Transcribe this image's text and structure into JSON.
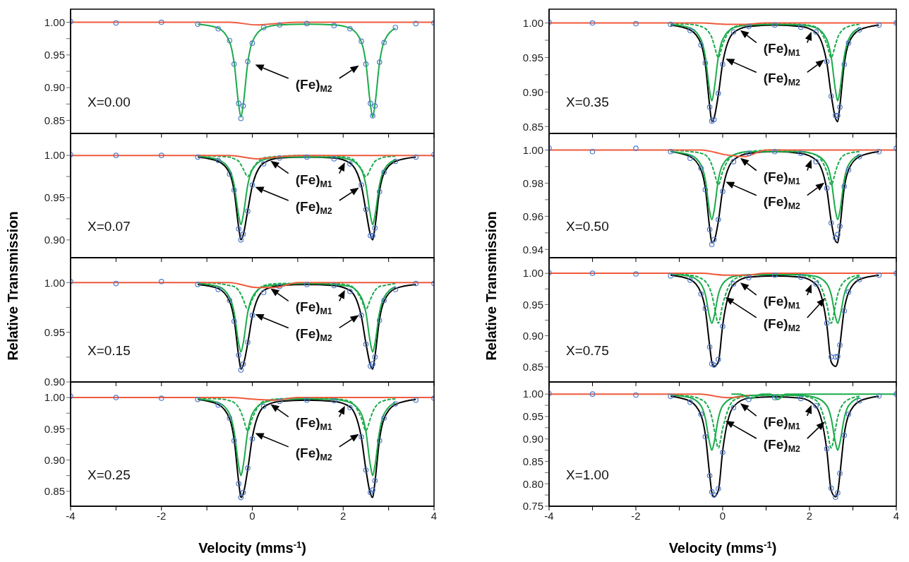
{
  "chart_data": [
    {
      "type": "line",
      "x": [
        -4,
        -3,
        -2,
        -1.2,
        -0.75,
        -0.5,
        -0.4,
        -0.3,
        -0.25,
        -0.2,
        -0.1,
        0,
        0.25,
        0.6,
        1.2,
        1.8,
        2.15,
        2.4,
        2.5,
        2.6,
        2.65,
        2.7,
        2.8,
        2.9,
        3.15,
        3.6,
        4
      ],
      "xlim": [
        -4,
        4
      ],
      "xticks": [
        -4,
        {
          "value": -3,
          "label": null
        },
        -2,
        {
          "value": -1,
          "label": null
        },
        0,
        {
          "value": 1,
          "label": null
        },
        2,
        {
          "value": 3,
          "label": null
        },
        4
      ],
      "ylim": [
        0.83,
        1.02
      ],
      "yticks": [
        {
          "value": 0.85,
          "label": "0.85"
        },
        {
          "value": 0.875,
          "label": null
        },
        {
          "value": 0.9,
          "label": "0.90"
        },
        {
          "value": 0.925,
          "label": null
        },
        {
          "value": 0.95,
          "label": "0.95"
        },
        {
          "value": 0.975,
          "label": null
        },
        {
          "value": 1,
          "label": "1.00"
        }
      ],
      "tick_labels": "y",
      "annotations": [
        "X=0.00",
        "(Fe)$_{M2}$"
      ],
      "series": [
        {
          "type": "scatter",
          "marker": "circle",
          "color": "#4f79c9",
          "values": [
            1.001,
            0.999,
            1,
            0.997,
            0.99,
            0.972,
            0.936,
            0.876,
            0.853,
            0.872,
            0.94,
            0.968,
            0.992,
            0.996,
            0.998,
            0.995,
            0.99,
            0.971,
            0.936,
            0.876,
            0.857,
            0.872,
            0.939,
            0.969,
            0.992,
            0.998,
            0.999
          ]
        },
        {
          "color": "#1aab4a",
          "line_style": "solid",
          "values": [
            null,
            null,
            null,
            0.997,
            0.991,
            0.97,
            0.938,
            0.874,
            0.855,
            0.874,
            0.938,
            0.97,
            0.991,
            0.996,
            0.997,
            0.996,
            0.991,
            0.97,
            0.938,
            0.874,
            0.855,
            0.874,
            0.938,
            0.97,
            0.991,
            null,
            null
          ]
        },
        {
          "color": "#f05a3c",
          "x": [
            -4,
            -0.5,
            0.1,
            0.5,
            1,
            4
          ],
          "values": [
            1,
            1,
            0.996,
            0.998,
            1,
            1
          ]
        }
      ]
    },
    {
      "type": "line",
      "x": [
        -4,
        -3,
        -2,
        -1.2,
        -0.75,
        -0.5,
        -0.4,
        -0.3,
        -0.25,
        -0.2,
        -0.1,
        0,
        0.25,
        0.6,
        1.2,
        1.8,
        2.15,
        2.4,
        2.5,
        2.6,
        2.65,
        2.7,
        2.8,
        2.9,
        3.15,
        3.6,
        4
      ],
      "xlim": [
        -4,
        4
      ],
      "xticks": [
        -4,
        {
          "value": -3,
          "label": null
        },
        -2,
        {
          "value": -1,
          "label": null
        },
        0,
        {
          "value": 1,
          "label": null
        },
        2,
        {
          "value": 3,
          "label": null
        },
        4
      ],
      "ylim": [
        0.879,
        1.026
      ],
      "yticks": [
        {
          "value": 0.9,
          "label": "0.90"
        },
        {
          "value": 0.925,
          "label": null
        },
        {
          "value": 0.95,
          "label": "0.95"
        },
        {
          "value": 0.975,
          "label": null
        },
        {
          "value": 1,
          "label": "1.00"
        }
      ],
      "tick_labels": "y",
      "annotations": [
        "X=0.07",
        "(Fe)$_{M1}$",
        "(Fe)$_{M2}$"
      ],
      "series": [
        {
          "type": "scatter",
          "marker": "circle",
          "color": "#4f79c9",
          "values": [
            1.001,
            1,
            1,
            0.998,
            0.994,
            0.978,
            0.959,
            0.913,
            0.9,
            0.907,
            0.934,
            0.965,
            0.99,
            0.997,
            0.998,
            0.996,
            0.99,
            0.965,
            0.936,
            0.905,
            0.905,
            0.914,
            0.957,
            0.98,
            0.993,
            0.998,
            1.001
          ]
        },
        {
          "color": "#000000",
          "values": [
            null,
            null,
            null,
            0.998,
            0.993,
            0.979,
            0.958,
            0.915,
            0.9,
            0.906,
            0.935,
            0.964,
            0.991,
            0.997,
            0.998,
            0.997,
            0.991,
            0.964,
            0.935,
            0.906,
            0.9,
            0.915,
            0.958,
            0.979,
            0.993,
            0.998,
            null
          ]
        },
        {
          "color": "#1aab4a",
          "line_style": "dashed",
          "values": [
            null,
            null,
            null,
            1,
            0.999,
            0.998,
            0.996,
            0.993,
            0.989,
            0.984,
            0.975,
            0.984,
            0.997,
            0.999,
            1,
            0.999,
            0.997,
            0.984,
            0.975,
            0.984,
            0.989,
            0.993,
            0.996,
            0.998,
            0.999,
            null,
            null
          ]
        },
        {
          "color": "#1aab4a",
          "line_style": "solid",
          "values": [
            null,
            null,
            null,
            0.999,
            0.995,
            0.983,
            0.965,
            0.929,
            0.918,
            0.929,
            0.965,
            0.983,
            0.995,
            0.998,
            0.998,
            0.998,
            0.995,
            0.983,
            0.965,
            0.929,
            0.918,
            0.929,
            0.965,
            0.983,
            0.995,
            null,
            null
          ]
        },
        {
          "color": "#f05a3c",
          "x": [
            -4,
            -0.5,
            0.1,
            0.5,
            1,
            4
          ],
          "values": [
            1,
            1,
            0.996,
            0.998,
            1,
            1
          ]
        }
      ]
    },
    {
      "type": "line",
      "x": [
        -4,
        -3,
        -2,
        -1.2,
        -0.75,
        -0.5,
        -0.4,
        -0.3,
        -0.25,
        -0.2,
        -0.1,
        0,
        0.25,
        0.6,
        1.2,
        1.8,
        2.15,
        2.4,
        2.5,
        2.6,
        2.65,
        2.7,
        2.8,
        2.9,
        3.15,
        3.6,
        4
      ],
      "xlim": [
        -4,
        4
      ],
      "xticks": [
        -4,
        {
          "value": -3,
          "label": null
        },
        -2,
        {
          "value": -1,
          "label": null
        },
        0,
        {
          "value": 1,
          "label": null
        },
        2,
        {
          "value": 3,
          "label": null
        },
        4
      ],
      "ylim": [
        0.9,
        1.025
      ],
      "yticks": [
        {
          "value": 0.9,
          "label": "0.90"
        },
        {
          "value": 0.925,
          "label": null
        },
        {
          "value": 0.95,
          "label": "0.95"
        },
        {
          "value": 0.975,
          "label": null
        },
        {
          "value": 1,
          "label": "1.00"
        }
      ],
      "tick_labels": "y",
      "ylabel": "Relative Transmission",
      "annotations": [
        "X=0.15",
        "(Fe)$_{M1}$",
        "(Fe)$_{M2}$"
      ],
      "series": [
        {
          "type": "scatter",
          "marker": "circle",
          "color": "#4f79c9",
          "values": [
            1.001,
            0.999,
            1.001,
            0.998,
            0.993,
            0.982,
            0.961,
            0.927,
            0.912,
            0.918,
            0.94,
            0.967,
            0.99,
            0.996,
            0.998,
            0.997,
            0.991,
            0.967,
            0.938,
            0.916,
            0.918,
            0.925,
            0.962,
            0.982,
            0.993,
            0.999,
            0.999
          ]
        },
        {
          "color": "#000000",
          "values": [
            null,
            null,
            null,
            0.998,
            0.994,
            0.981,
            0.963,
            0.926,
            0.913,
            0.917,
            0.939,
            0.966,
            0.992,
            0.997,
            0.998,
            0.997,
            0.992,
            0.966,
            0.939,
            0.917,
            0.913,
            0.926,
            0.963,
            0.981,
            0.994,
            0.998,
            null
          ]
        },
        {
          "color": "#1aab4a",
          "line_style": "dashed",
          "values": [
            null,
            null,
            null,
            1,
            0.999,
            0.997,
            0.996,
            0.992,
            0.988,
            0.983,
            0.973,
            0.983,
            0.997,
            0.999,
            0.999,
            0.999,
            0.997,
            0.983,
            0.973,
            0.983,
            0.988,
            0.992,
            0.996,
            0.997,
            0.999,
            null,
            null
          ]
        },
        {
          "color": "#1aab4a",
          "line_style": "solid",
          "values": [
            null,
            null,
            null,
            0.999,
            0.996,
            0.985,
            0.97,
            0.939,
            0.93,
            0.939,
            0.97,
            0.985,
            0.996,
            0.998,
            0.999,
            0.998,
            0.996,
            0.985,
            0.97,
            0.939,
            0.93,
            0.939,
            0.97,
            0.985,
            0.996,
            null,
            null
          ]
        },
        {
          "color": "#f05a3c",
          "x": [
            -4,
            -0.5,
            0.1,
            0.5,
            1,
            4
          ],
          "values": [
            1,
            1,
            0.995,
            0.995,
            1,
            1
          ]
        }
      ]
    },
    {
      "type": "line",
      "x": [
        -4,
        -3,
        -2,
        -1.2,
        -0.75,
        -0.5,
        -0.4,
        -0.3,
        -0.25,
        -0.2,
        -0.1,
        0,
        0.25,
        0.6,
        1.2,
        1.8,
        2.15,
        2.4,
        2.5,
        2.6,
        2.65,
        2.7,
        2.8,
        2.9,
        3.15,
        3.6,
        4
      ],
      "xlim": [
        -4,
        4
      ],
      "xticks": [
        -4,
        {
          "value": -3,
          "label": null
        },
        -2,
        {
          "value": -1,
          "label": null
        },
        0,
        {
          "value": 1,
          "label": null
        },
        2,
        {
          "value": 3,
          "label": null
        },
        4
      ],
      "ylim": [
        0.826,
        1.025
      ],
      "yticks": [
        {
          "value": 0.85,
          "label": "0.85"
        },
        {
          "value": 0.875,
          "label": null
        },
        {
          "value": 0.9,
          "label": "0.90"
        },
        {
          "value": 0.925,
          "label": null
        },
        {
          "value": 0.95,
          "label": "0.95"
        },
        {
          "value": 0.975,
          "label": null
        },
        {
          "value": 1,
          "label": "1.00"
        }
      ],
      "xlabel": "Velocity (mms$^{-1}$)",
      "annotations": [
        "X=0.25",
        "(Fe)$_{M1}$",
        "(Fe)$_{M2}$"
      ],
      "series": [
        {
          "type": "scatter",
          "marker": "circle",
          "color": "#4f79c9",
          "values": [
            1.002,
            1,
            0.999,
            0.997,
            0.988,
            0.967,
            0.931,
            0.862,
            0.84,
            0.848,
            0.887,
            0.934,
            0.986,
            0.994,
            0.996,
            0.995,
            0.984,
            0.937,
            0.884,
            0.848,
            0.852,
            0.867,
            0.931,
            0.967,
            0.99,
            0.996,
            0.999
          ]
        },
        {
          "color": "#000000",
          "values": [
            null,
            null,
            null,
            0.997,
            0.989,
            0.966,
            0.933,
            0.865,
            0.84,
            0.846,
            0.885,
            0.936,
            0.985,
            0.994,
            0.996,
            0.994,
            0.985,
            0.936,
            0.885,
            0.846,
            0.84,
            0.865,
            0.933,
            0.966,
            0.989,
            0.997,
            null
          ]
        },
        {
          "color": "#1aab4a",
          "line_style": "dashed",
          "values": [
            null,
            null,
            null,
            0.999,
            0.998,
            0.995,
            0.992,
            0.984,
            0.977,
            0.967,
            0.947,
            0.967,
            0.994,
            0.998,
            0.999,
            0.998,
            0.994,
            0.967,
            0.947,
            0.967,
            0.977,
            0.984,
            0.992,
            0.995,
            0.998,
            null,
            null
          ]
        },
        {
          "color": "#1aab4a",
          "line_style": "solid",
          "values": [
            null,
            null,
            null,
            0.998,
            0.992,
            0.974,
            0.946,
            0.891,
            0.875,
            0.891,
            0.946,
            0.974,
            0.992,
            0.997,
            0.998,
            0.997,
            0.992,
            0.974,
            0.946,
            0.891,
            0.875,
            0.891,
            0.946,
            0.974,
            0.992,
            null,
            null
          ]
        },
        {
          "color": "#f05a3c",
          "x": [
            -4,
            -0.5,
            0.1,
            0.5,
            1,
            4
          ],
          "values": [
            1,
            1,
            0.997,
            0.996,
            1,
            1
          ]
        }
      ]
    },
    {
      "type": "line",
      "x": [
        -4,
        -3,
        -2,
        -1.2,
        -0.75,
        -0.5,
        -0.4,
        -0.3,
        -0.25,
        -0.2,
        -0.1,
        0,
        0.25,
        0.6,
        1.2,
        1.8,
        2.15,
        2.4,
        2.5,
        2.6,
        2.65,
        2.7,
        2.8,
        2.9,
        3.15,
        3.6,
        4
      ],
      "xlim": [
        -4,
        4
      ],
      "xticks": [
        -4,
        {
          "value": -3,
          "label": null
        },
        -2,
        {
          "value": -1,
          "label": null
        },
        0,
        {
          "value": 1,
          "label": null
        },
        2,
        {
          "value": 3,
          "label": null
        },
        4
      ],
      "ylim": [
        0.84,
        1.02
      ],
      "yticks": [
        {
          "value": 0.85,
          "label": "0.85"
        },
        {
          "value": 0.875,
          "label": null
        },
        {
          "value": 0.9,
          "label": "0.90"
        },
        {
          "value": 0.925,
          "label": null
        },
        {
          "value": 0.95,
          "label": "0.95"
        },
        {
          "value": 0.975,
          "label": null
        },
        {
          "value": 1,
          "label": "1.00"
        }
      ],
      "tick_labels": "y",
      "annotations": [
        "X=0.35",
        "(Fe)$_{M1}$",
        "(Fe)$_{M2}$"
      ],
      "series": [
        {
          "type": "scatter",
          "marker": "circle",
          "color": "#4f79c9",
          "values": [
            1.001,
            1,
            0.999,
            0.998,
            0.989,
            0.968,
            0.942,
            0.878,
            0.858,
            0.86,
            0.898,
            0.94,
            0.987,
            0.995,
            0.997,
            0.994,
            0.987,
            0.944,
            0.894,
            0.866,
            0.866,
            0.878,
            0.94,
            0.971,
            0.99,
            0.997,
            1
          ]
        },
        {
          "color": "#000000",
          "values": [
            null,
            null,
            null,
            0.997,
            0.99,
            0.97,
            0.94,
            0.88,
            0.857,
            0.862,
            0.896,
            0.942,
            0.986,
            0.995,
            0.997,
            0.995,
            0.986,
            0.942,
            0.896,
            0.862,
            0.857,
            0.88,
            0.94,
            0.97,
            0.99,
            0.997,
            null
          ]
        },
        {
          "color": "#1aab4a",
          "line_style": "dashed",
          "values": [
            null,
            null,
            null,
            0.999,
            0.998,
            0.995,
            0.992,
            0.985,
            0.979,
            0.969,
            0.95,
            0.969,
            0.994,
            0.998,
            0.999,
            0.998,
            0.994,
            0.969,
            0.95,
            0.969,
            0.979,
            0.985,
            0.992,
            0.995,
            0.998,
            null,
            null
          ]
        },
        {
          "color": "#1aab4a",
          "line_style": "solid",
          "values": [
            null,
            null,
            null,
            0.998,
            0.993,
            0.976,
            0.951,
            0.902,
            0.887,
            0.902,
            0.951,
            0.976,
            0.993,
            0.997,
            0.998,
            0.997,
            0.993,
            0.976,
            0.951,
            0.902,
            0.887,
            0.902,
            0.951,
            0.976,
            0.993,
            null,
            null
          ]
        },
        {
          "color": "#f05a3c",
          "x": [
            -4,
            -0.5,
            0.1,
            0.5,
            1,
            4
          ],
          "values": [
            1,
            1,
            0.998,
            0.998,
            1,
            1
          ]
        }
      ]
    },
    {
      "type": "line",
      "x": [
        -4,
        -3,
        -2,
        -1.2,
        -0.75,
        -0.5,
        -0.4,
        -0.3,
        -0.25,
        -0.2,
        -0.1,
        0,
        0.25,
        0.6,
        1.2,
        1.8,
        2.15,
        2.4,
        2.5,
        2.6,
        2.65,
        2.7,
        2.8,
        2.9,
        3.15,
        3.6,
        4
      ],
      "xlim": [
        -4,
        4
      ],
      "xticks": [
        -4,
        {
          "value": -3,
          "label": null
        },
        -2,
        {
          "value": -1,
          "label": null
        },
        0,
        {
          "value": 1,
          "label": null
        },
        2,
        {
          "value": 3,
          "label": null
        },
        4
      ],
      "ylim": [
        0.935,
        1.01
      ],
      "yticks": [
        {
          "value": 0.94,
          "label": "0.94"
        },
        {
          "value": 0.95,
          "label": null
        },
        {
          "value": 0.96,
          "label": "0.96"
        },
        {
          "value": 0.97,
          "label": null
        },
        {
          "value": 0.98,
          "label": "0.98"
        },
        {
          "value": 0.99,
          "label": null
        },
        {
          "value": 1,
          "label": "1.00"
        }
      ],
      "tick_labels": "y",
      "annotations": [
        "X=0.50",
        "(Fe)$_{M1}$",
        "(Fe)$_{M2}$"
      ],
      "series": [
        {
          "type": "scatter",
          "marker": "circle",
          "color": "#4f79c9",
          "values": [
            1.001,
            0.999,
            1.001,
            0.999,
            0.995,
            0.989,
            0.976,
            0.952,
            0.943,
            0.946,
            0.958,
            0.975,
            0.993,
            0.998,
            0.999,
            0.998,
            0.993,
            0.977,
            0.956,
            0.947,
            0.949,
            0.954,
            0.978,
            0.988,
            0.996,
            0.999,
            1.001
          ]
        },
        {
          "color": "#000000",
          "values": [
            null,
            null,
            null,
            0.999,
            0.996,
            0.988,
            0.977,
            0.953,
            0.944,
            0.945,
            0.957,
            0.976,
            0.994,
            0.998,
            0.999,
            0.998,
            0.994,
            0.976,
            0.957,
            0.945,
            0.944,
            0.953,
            0.977,
            0.988,
            0.996,
            0.999,
            null
          ]
        },
        {
          "color": "#1aab4a",
          "line_style": "dashed",
          "values": [
            null,
            null,
            null,
            1,
            0.999,
            0.998,
            0.997,
            0.994,
            0.991,
            0.987,
            0.979,
            0.987,
            0.997,
            0.999,
            1,
            0.999,
            0.997,
            0.987,
            0.979,
            0.987,
            0.991,
            0.994,
            0.997,
            0.998,
            0.999,
            null,
            null
          ]
        },
        {
          "color": "#1aab4a",
          "line_style": "solid",
          "values": [
            null,
            null,
            null,
            0.999,
            0.997,
            0.991,
            0.982,
            0.963,
            0.958,
            0.963,
            0.982,
            0.991,
            0.997,
            0.999,
            0.999,
            0.999,
            0.997,
            0.991,
            0.982,
            0.963,
            0.958,
            0.963,
            0.982,
            0.991,
            0.997,
            null,
            null
          ]
        },
        {
          "color": "#f05a3c",
          "x": [
            -4,
            -0.5,
            0.1,
            0.5,
            1,
            4
          ],
          "values": [
            1,
            1,
            0.997,
            0.996,
            1,
            1
          ]
        }
      ]
    },
    {
      "type": "line",
      "x": [
        -4,
        -3,
        -2,
        -1.2,
        -0.75,
        -0.5,
        -0.4,
        -0.3,
        -0.25,
        -0.2,
        -0.1,
        0,
        0.25,
        0.6,
        1.2,
        1.8,
        2.15,
        2.4,
        2.5,
        2.6,
        2.65,
        2.7,
        2.8,
        2.9,
        3.15,
        3.6,
        4
      ],
      "xlim": [
        -4,
        4
      ],
      "xticks": [
        -4,
        {
          "value": -3,
          "label": null
        },
        -2,
        {
          "value": -1,
          "label": null
        },
        0,
        {
          "value": 1,
          "label": null
        },
        2,
        {
          "value": 3,
          "label": null
        },
        4
      ],
      "ylim": [
        0.826,
        1.025
      ],
      "yticks": [
        {
          "value": 0.85,
          "label": "0.85"
        },
        {
          "value": 0.875,
          "label": null
        },
        {
          "value": 0.9,
          "label": "0.90"
        },
        {
          "value": 0.925,
          "label": null
        },
        {
          "value": 0.95,
          "label": "0.95"
        },
        {
          "value": 0.975,
          "label": null
        },
        {
          "value": 1,
          "label": "1.00"
        }
      ],
      "tick_labels": "y",
      "ylabel": "Relative Transmission",
      "annotations": [
        "X=0.75",
        "(Fe)$_{M1}$",
        "(Fe)$_{M2}$"
      ],
      "series": [
        {
          "type": "scatter",
          "marker": "circle",
          "color": "#4f79c9",
          "values": [
            1.001,
            1,
            0.999,
            0.996,
            0.989,
            0.967,
            0.944,
            0.882,
            0.855,
            0.853,
            0.862,
            0.915,
            0.983,
            0.993,
            0.997,
            0.994,
            0.983,
            0.92,
            0.866,
            0.866,
            0.867,
            0.885,
            0.94,
            0.97,
            0.99,
            0.997,
            1
          ]
        },
        {
          "color": "#000000",
          "values": [
            null,
            null,
            null,
            0.997,
            0.99,
            0.969,
            0.942,
            0.884,
            0.858,
            0.851,
            0.858,
            0.917,
            0.982,
            0.994,
            0.996,
            0.994,
            0.982,
            0.917,
            0.858,
            0.851,
            0.858,
            0.884,
            0.942,
            0.969,
            0.99,
            0.997,
            null
          ]
        },
        {
          "color": "#1aab4a",
          "line_style": "dashed",
          "values": [
            null,
            null,
            null,
            0.999,
            0.997,
            0.992,
            0.987,
            0.976,
            0.966,
            0.95,
            0.92,
            0.95,
            0.99,
            0.997,
            0.998,
            0.997,
            0.99,
            0.95,
            0.92,
            0.95,
            0.966,
            0.976,
            0.987,
            0.992,
            0.997,
            null,
            null
          ]
        },
        {
          "color": "#1aab4a",
          "line_style": "solid",
          "values": [
            null,
            null,
            null,
            0.999,
            0.995,
            0.983,
            0.966,
            0.93,
            0.92,
            0.93,
            0.966,
            0.983,
            0.995,
            0.998,
            0.998,
            0.998,
            0.995,
            0.983,
            0.966,
            0.93,
            0.92,
            0.93,
            0.966,
            0.983,
            0.995,
            null,
            null
          ]
        },
        {
          "color": "#f05a3c",
          "x": [
            -4,
            -0.5,
            0.1,
            0.5,
            1,
            4
          ],
          "values": [
            1,
            1,
            0.997,
            0.997,
            1,
            1
          ]
        }
      ]
    },
    {
      "type": "line",
      "x": [
        -4,
        -3,
        -2,
        -1.2,
        -0.75,
        -0.5,
        -0.4,
        -0.3,
        -0.25,
        -0.2,
        -0.1,
        0,
        0.25,
        0.6,
        1.2,
        1.8,
        2.15,
        2.4,
        2.5,
        2.6,
        2.65,
        2.7,
        2.8,
        2.9,
        3.15,
        3.6,
        4
      ],
      "xlim": [
        -4,
        4
      ],
      "xticks": [
        -4,
        {
          "value": -3,
          "label": null
        },
        -2,
        {
          "value": -1,
          "label": null
        },
        0,
        {
          "value": 1,
          "label": null
        },
        2,
        {
          "value": 3,
          "label": null
        },
        4
      ],
      "ylim": [
        0.75,
        1.027
      ],
      "yticks": [
        {
          "value": 0.75,
          "label": "0.75"
        },
        {
          "value": 0.775,
          "label": null
        },
        {
          "value": 0.8,
          "label": "0.80"
        },
        {
          "value": 0.825,
          "label": null
        },
        {
          "value": 0.85,
          "label": "0.85"
        },
        {
          "value": 0.875,
          "label": null
        },
        {
          "value": 0.9,
          "label": "0.90"
        },
        {
          "value": 0.925,
          "label": null
        },
        {
          "value": 0.95,
          "label": "0.95"
        },
        {
          "value": 0.975,
          "label": null
        },
        {
          "value": 1,
          "label": "1.00"
        }
      ],
      "xlabel": "Velocity (mms$^{-1}$)",
      "annotations": [
        "X=1.00",
        "(Fe)$_{M1}$",
        "(Fe)$_{M2}$"
      ],
      "series": [
        {
          "type": "scatter",
          "marker": "circle",
          "color": "#4f79c9",
          "values": [
            1.001,
            1,
            0.998,
            0.995,
            0.982,
            0.955,
            0.905,
            0.818,
            0.782,
            0.775,
            0.789,
            0.87,
            0.97,
            0.988,
            0.992,
            0.99,
            0.974,
            0.878,
            0.79,
            0.77,
            0.78,
            0.823,
            0.908,
            0.955,
            0.985,
            0.996,
            1
          ]
        },
        {
          "color": "#000000",
          "values": [
            null,
            null,
            null,
            0.995,
            0.984,
            0.953,
            0.91,
            0.82,
            0.781,
            0.771,
            0.785,
            0.874,
            0.972,
            0.991,
            0.994,
            0.991,
            0.972,
            0.874,
            0.785,
            0.771,
            0.781,
            0.82,
            0.91,
            0.953,
            0.984,
            0.995,
            null
          ]
        },
        {
          "color": "#1aab4a",
          "line_style": "dashed",
          "values": [
            null,
            null,
            null,
            0.998,
            0.995,
            0.988,
            0.981,
            0.964,
            0.948,
            0.924,
            0.88,
            0.924,
            0.986,
            0.996,
            0.998,
            0.996,
            0.986,
            0.924,
            0.88,
            0.924,
            0.948,
            0.964,
            0.981,
            0.988,
            0.995,
            null,
            null
          ]
        },
        {
          "color": "#1aab4a",
          "line_style": "solid",
          "values": [
            null,
            null,
            null,
            0.998,
            0.992,
            0.974,
            0.946,
            0.891,
            0.875,
            0.891,
            0.946,
            0.974,
            0.992,
            0.997,
            0.998,
            0.997,
            0.992,
            0.974,
            0.946,
            0.891,
            0.875,
            0.891,
            0.946,
            0.974,
            0.992,
            null,
            null
          ]
        },
        {
          "color": "#f05a3c",
          "x": [
            -4,
            -0.5,
            0.1,
            0.4,
            0.6
          ],
          "values": [
            1,
            1,
            0.992,
            0.994,
            0.997
          ]
        },
        {
          "color": "#1aab4a",
          "x": [
            0.2,
            0.4,
            0.65,
            0.9,
            1.1,
            1.27,
            1.45,
            4
          ],
          "values": [
            1,
            1,
            0.99,
            1,
            1,
            0.988,
            1,
            1
          ]
        }
      ]
    }
  ]
}
